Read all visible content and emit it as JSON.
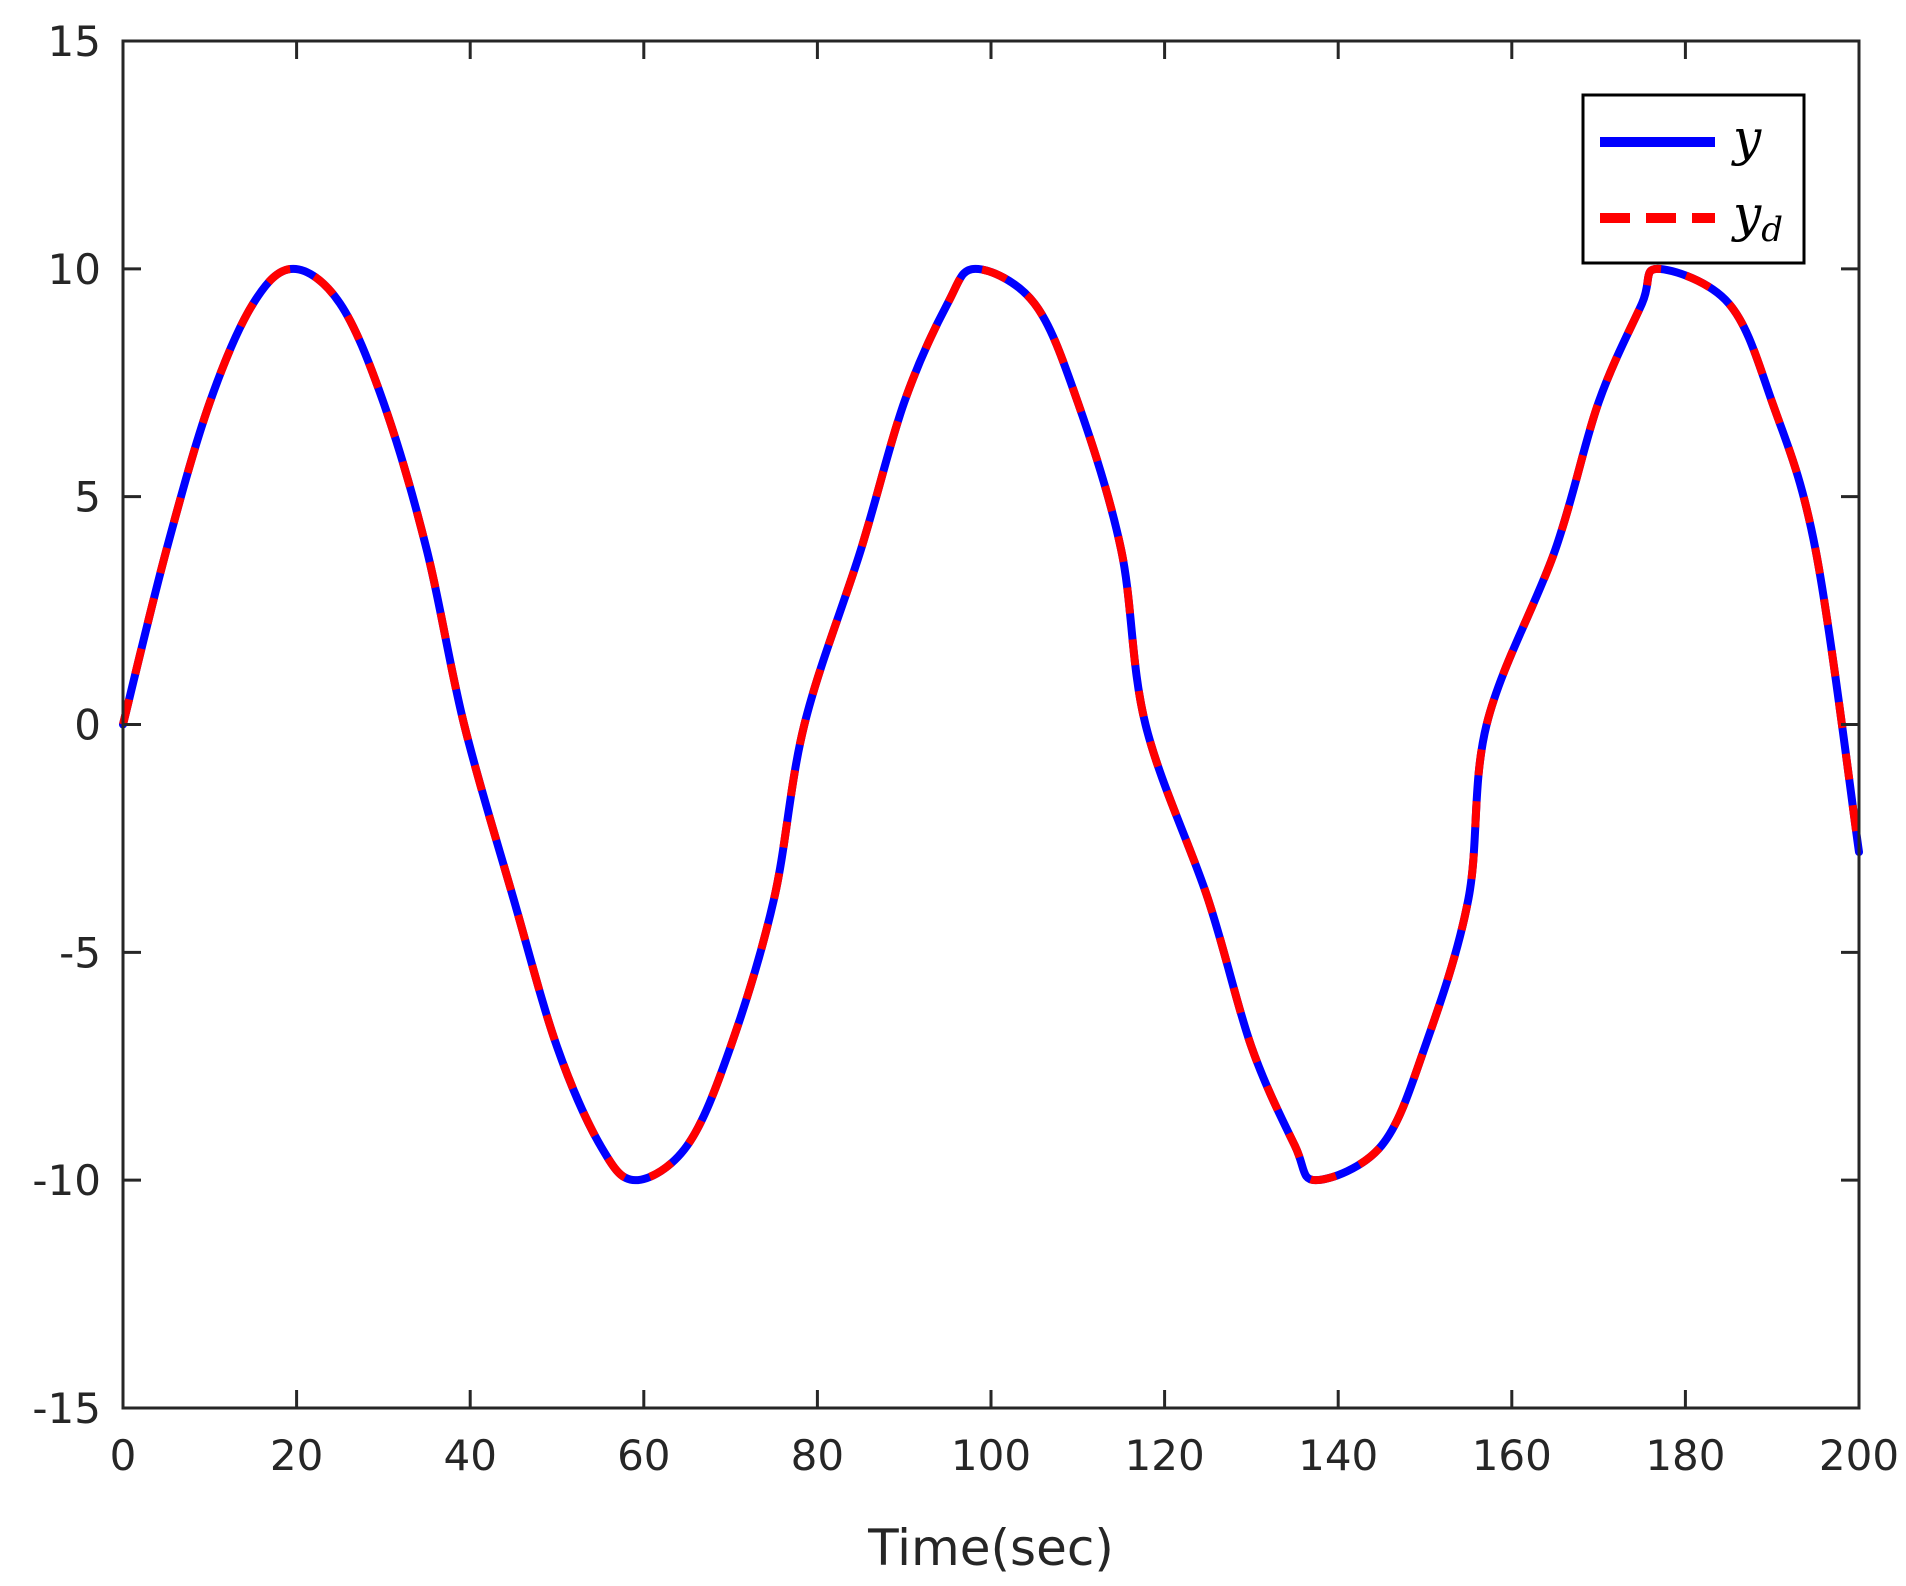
{
  "chart_data": {
    "type": "line",
    "xlabel": "Time(sec)",
    "ylabel": "",
    "xlim": [
      0,
      200
    ],
    "ylim": [
      -15,
      15
    ],
    "xticks": [
      "0",
      "20",
      "40",
      "60",
      "80",
      "100",
      "120",
      "140",
      "160",
      "180",
      "200"
    ],
    "yticks": [
      "-15",
      "-10",
      "-5",
      "0",
      "5",
      "10",
      "15"
    ],
    "grid": false,
    "legend_position": "top-right",
    "series": [
      {
        "name": "y",
        "color": "#0000ff",
        "style": "solid",
        "x": [
          0,
          5,
          10,
          15,
          19.6,
          25,
          30,
          35,
          39.3,
          45,
          50,
          55,
          59,
          65,
          70,
          75,
          78.5,
          85,
          90,
          95,
          98.2,
          105,
          110,
          115,
          117.8,
          125,
          130,
          135,
          137.4,
          145,
          150,
          155,
          157.1,
          165,
          170,
          175,
          176.8,
          185,
          190,
          195,
          200
        ],
        "y": [
          0,
          3.83,
          7.07,
          9.24,
          10.0,
          9.24,
          7.07,
          3.83,
          0.0,
          -3.83,
          -7.07,
          -9.24,
          -10.0,
          -9.24,
          -7.07,
          -3.83,
          0.0,
          3.83,
          7.07,
          9.24,
          10.0,
          9.24,
          7.07,
          3.83,
          0.0,
          -3.83,
          -7.07,
          -9.24,
          -10.0,
          -9.24,
          -7.07,
          -3.83,
          0.0,
          3.83,
          7.07,
          9.24,
          10.0,
          9.24,
          7.07,
          3.83,
          -2.8
        ]
      },
      {
        "name": "y_d",
        "legend_base": "y",
        "legend_sub": "d",
        "color": "#ff0000",
        "style": "dashed",
        "x": [
          0,
          5,
          10,
          15,
          19.6,
          25,
          30,
          35,
          39.3,
          45,
          50,
          55,
          59,
          65,
          70,
          75,
          78.5,
          85,
          90,
          95,
          98.2,
          105,
          110,
          115,
          117.8,
          125,
          130,
          135,
          137.4,
          145,
          150,
          155,
          157.1,
          165,
          170,
          175,
          176.8,
          185,
          190,
          195,
          200
        ],
        "y": [
          0,
          3.83,
          7.07,
          9.24,
          10.0,
          9.24,
          7.07,
          3.83,
          0.0,
          -3.83,
          -7.07,
          -9.24,
          -10.0,
          -9.24,
          -7.07,
          -3.83,
          0.0,
          3.83,
          7.07,
          9.24,
          10.0,
          9.24,
          7.07,
          3.83,
          0.0,
          -3.83,
          -7.07,
          -9.24,
          -10.0,
          -9.24,
          -7.07,
          -3.83,
          0.0,
          3.83,
          7.07,
          9.24,
          10.0,
          9.24,
          7.07,
          3.83,
          -2.8
        ]
      }
    ]
  }
}
